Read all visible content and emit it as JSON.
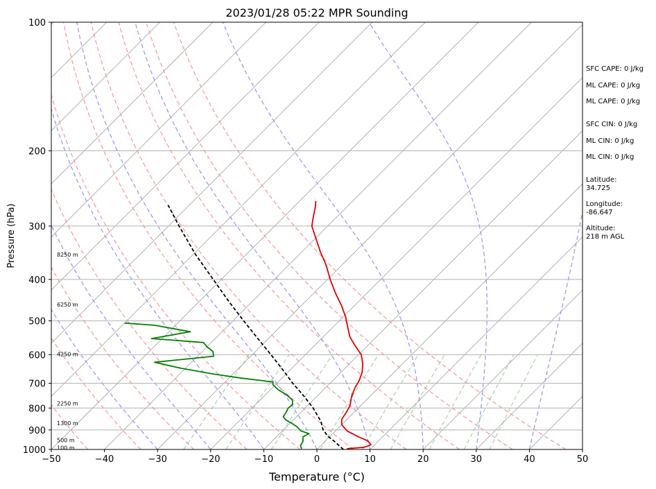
{
  "chart_data": {
    "type": "line",
    "title": "2023/01/28 05:22 MPR Sounding",
    "xlabel": "Temperature (°C)",
    "ylabel": "Pressure (hPa)",
    "xlim": [
      -50,
      50
    ],
    "ylim": [
      1000,
      100
    ],
    "y_scale": "log",
    "skew": "45-degree skew-T",
    "grid": true,
    "x_ticks": [
      "−50",
      "−40",
      "−30",
      "−20",
      "−10",
      "0",
      "10",
      "20",
      "30",
      "40",
      "50"
    ],
    "x_tick_values": [
      -50,
      -40,
      -30,
      -20,
      -10,
      0,
      10,
      20,
      30,
      40,
      50
    ],
    "y_ticks": [
      "100",
      "200",
      "300",
      "400",
      "500",
      "600",
      "700",
      "800",
      "900",
      "1000"
    ],
    "y_tick_values": [
      100,
      200,
      300,
      400,
      500,
      600,
      700,
      800,
      900,
      1000
    ],
    "height_labels": [
      {
        "text": "8250 m",
        "pressure": 350
      },
      {
        "text": "6250 m",
        "pressure": 458
      },
      {
        "text": "4250 m",
        "pressure": 598
      },
      {
        "text": "2250 m",
        "pressure": 780
      },
      {
        "text": "1300 m",
        "pressure": 867
      },
      {
        "text": "500 m",
        "pressure": 950
      },
      {
        "text": "100 m",
        "pressure": 990
      }
    ],
    "series": [
      {
        "role": "temperature",
        "color": "#e00000",
        "points": [
          {
            "p": 996,
            "t": 5.5
          },
          {
            "p": 988,
            "t": 8.5
          },
          {
            "p": 975,
            "t": 9.3
          },
          {
            "p": 955,
            "t": 8.0
          },
          {
            "p": 932,
            "t": 5.2
          },
          {
            "p": 905,
            "t": 2.2
          },
          {
            "p": 875,
            "t": 0.0
          },
          {
            "p": 850,
            "t": -1.0
          },
          {
            "p": 815,
            "t": -1.5
          },
          {
            "p": 790,
            "t": -2.0
          },
          {
            "p": 750,
            "t": -3.5
          },
          {
            "p": 715,
            "t": -4.5
          },
          {
            "p": 690,
            "t": -5.0
          },
          {
            "p": 660,
            "t": -6.0
          },
          {
            "p": 630,
            "t": -7.5
          },
          {
            "p": 600,
            "t": -9.5
          },
          {
            "p": 570,
            "t": -12.5
          },
          {
            "p": 545,
            "t": -15.0
          },
          {
            "p": 520,
            "t": -17.0
          },
          {
            "p": 490,
            "t": -19.5
          },
          {
            "p": 460,
            "t": -22.5
          },
          {
            "p": 430,
            "t": -26.0
          },
          {
            "p": 400,
            "t": -29.5
          },
          {
            "p": 370,
            "t": -33.0
          },
          {
            "p": 345,
            "t": -36.5
          },
          {
            "p": 320,
            "t": -40.0
          },
          {
            "p": 300,
            "t": -43.0
          },
          {
            "p": 285,
            "t": -44.5
          },
          {
            "p": 270,
            "t": -46.0
          },
          {
            "p": 262,
            "t": -47.0
          }
        ]
      },
      {
        "role": "dewpoint",
        "color": "#008000",
        "points": [
          {
            "p": 996,
            "t": -3.0
          },
          {
            "p": 980,
            "t": -3.8
          },
          {
            "p": 955,
            "t": -4.2
          },
          {
            "p": 935,
            "t": -5.0
          },
          {
            "p": 918,
            "t": -4.5
          },
          {
            "p": 905,
            "t": -6.5
          },
          {
            "p": 885,
            "t": -8.0
          },
          {
            "p": 870,
            "t": -9.5
          },
          {
            "p": 852,
            "t": -11.5
          },
          {
            "p": 838,
            "t": -12.5
          },
          {
            "p": 818,
            "t": -12.8
          },
          {
            "p": 800,
            "t": -13.2
          },
          {
            "p": 785,
            "t": -13.0
          },
          {
            "p": 765,
            "t": -14.0
          },
          {
            "p": 745,
            "t": -16.0
          },
          {
            "p": 725,
            "t": -18.5
          },
          {
            "p": 705,
            "t": -20.5
          },
          {
            "p": 695,
            "t": -21.0
          },
          {
            "p": 680,
            "t": -28.0
          },
          {
            "p": 665,
            "t": -34.0
          },
          {
            "p": 645,
            "t": -41.0
          },
          {
            "p": 625,
            "t": -47.0
          },
          {
            "p": 605,
            "t": -37.0
          },
          {
            "p": 590,
            "t": -38.0
          },
          {
            "p": 575,
            "t": -40.0
          },
          {
            "p": 562,
            "t": -41.5
          },
          {
            "p": 550,
            "t": -52.0
          },
          {
            "p": 530,
            "t": -46.0
          },
          {
            "p": 512,
            "t": -54.0
          },
          {
            "p": 506,
            "t": -60.0
          }
        ]
      },
      {
        "role": "parcel",
        "color": "#000000",
        "dashed": true,
        "points": [
          {
            "p": 1000,
            "t": 5.0
          },
          {
            "p": 960,
            "t": 2.0
          },
          {
            "p": 930,
            "t": -0.5
          },
          {
            "p": 900,
            "t": -2.5
          },
          {
            "p": 880,
            "t": -3.5
          },
          {
            "p": 860,
            "t": -4.5
          },
          {
            "p": 800,
            "t": -8.5
          },
          {
            "p": 750,
            "t": -12.5
          },
          {
            "p": 700,
            "t": -17.0
          },
          {
            "p": 650,
            "t": -21.5
          },
          {
            "p": 600,
            "t": -26.5
          },
          {
            "p": 550,
            "t": -32.0
          },
          {
            "p": 500,
            "t": -38.0
          },
          {
            "p": 450,
            "t": -44.5
          },
          {
            "p": 400,
            "t": -51.5
          },
          {
            "p": 350,
            "t": -59.5
          },
          {
            "p": 300,
            "t": -68.0
          },
          {
            "p": 268,
            "t": -74.0
          }
        ]
      }
    ],
    "reference_lines": {
      "isotherm_color": "#a0a0a0",
      "dry_adiabat_color": "#ff9999",
      "moist_adiabat_color": "#9999ff",
      "mixing_ratio_color": "#77bb77",
      "dry_adiabat_thetas_K": [
        230,
        240,
        250,
        260,
        270,
        280,
        290,
        300,
        310,
        320
      ],
      "moist_adiabat_start_T": [
        -30,
        -20,
        -10,
        0,
        10,
        20,
        30,
        40
      ],
      "mixing_ratios_gkg": [
        0.5,
        1,
        2,
        4,
        7,
        10,
        16,
        24,
        32
      ]
    }
  },
  "indices": {
    "sfc_cape": "SFC CAPE: 0 J/kg",
    "ml_cape_1": "ML CAPE: 0 J/kg",
    "ml_cape_2": "ML CAPE: 0 J/kg",
    "sfc_cin": "SFC CIN: 0 J/kg",
    "ml_cin_1": "ML CIN: 0 J/kg",
    "ml_cin_2": "ML CIN: 0 J/kg",
    "latitude": "Latitude:\n34.725",
    "longitude": "Longitude:\n-86.647",
    "altitude": "Altitude:\n218 m AGL"
  }
}
